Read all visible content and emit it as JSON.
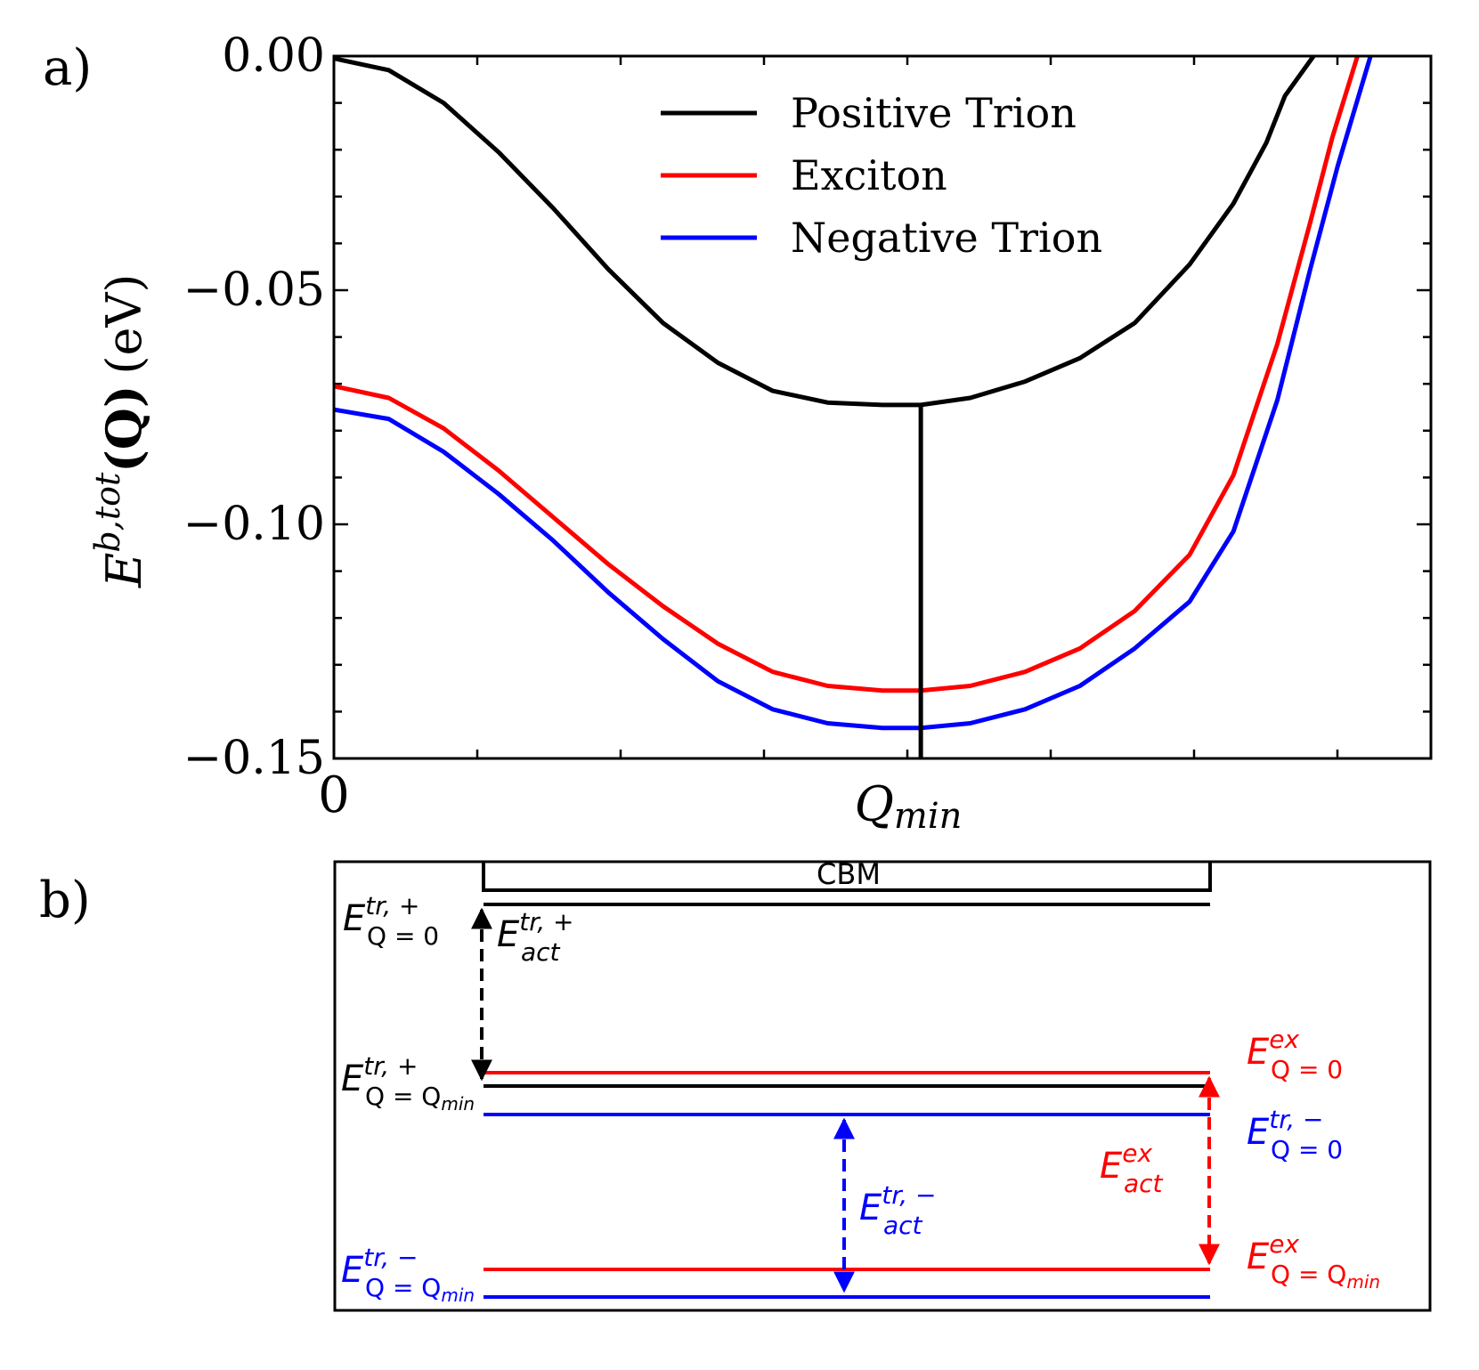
{
  "panel_labels": {
    "a": "a)",
    "b": "b)"
  },
  "chart_data": [
    {
      "type": "line",
      "panel": "a",
      "xlabel": "",
      "ylabel_main": "E",
      "ylabel_sup": "b,tot",
      "ylabel_arg": "(Q)",
      "ylabel_unit": "(eV)",
      "xlim": [
        0,
        1
      ],
      "ylim": [
        -0.15,
        0.0
      ],
      "x_tick_labels": [
        {
          "x": 0,
          "label": "0"
        },
        {
          "x": 0.527,
          "label_main": "Q",
          "label_sub": "min"
        }
      ],
      "y_ticks": [
        {
          "y": 0.0,
          "label": "0.00"
        },
        {
          "y": -0.05,
          "label": "−0.05"
        },
        {
          "y": -0.1,
          "label": "−0.10"
        },
        {
          "y": -0.15,
          "label": "−0.15"
        }
      ],
      "vline": {
        "x": 0.535,
        "y_from": -0.15,
        "y_to": -0.0745,
        "color": "#000000"
      },
      "legend": {
        "position": "top-center"
      },
      "series": [
        {
          "name": "Positive Trion",
          "color": "#000000",
          "x": [
            0,
            0.05,
            0.1,
            0.15,
            0.2,
            0.25,
            0.3,
            0.35,
            0.4,
            0.45,
            0.5,
            0.535,
            0.58,
            0.63,
            0.68,
            0.73,
            0.78,
            0.82,
            0.85,
            0.867,
            0.893
          ],
          "y": [
            -0.0005,
            -0.003,
            -0.01,
            -0.0205,
            -0.0325,
            -0.0455,
            -0.057,
            -0.0655,
            -0.0715,
            -0.074,
            -0.0745,
            -0.0745,
            -0.073,
            -0.0695,
            -0.0645,
            -0.057,
            -0.0445,
            -0.0315,
            -0.0185,
            -0.0085,
            0.0
          ]
        },
        {
          "name": "Exciton",
          "color": "#ff0000",
          "x": [
            0,
            0.05,
            0.1,
            0.15,
            0.2,
            0.25,
            0.3,
            0.35,
            0.4,
            0.45,
            0.5,
            0.535,
            0.58,
            0.63,
            0.68,
            0.73,
            0.78,
            0.82,
            0.86,
            0.89,
            0.91,
            0.933
          ],
          "y": [
            -0.0705,
            -0.073,
            -0.0795,
            -0.0885,
            -0.0985,
            -0.1085,
            -0.1175,
            -0.1255,
            -0.1315,
            -0.1345,
            -0.1355,
            -0.1355,
            -0.1345,
            -0.1315,
            -0.1265,
            -0.1185,
            -0.1065,
            -0.0895,
            -0.0615,
            -0.0355,
            -0.0175,
            0.0
          ]
        },
        {
          "name": "Negative Trion",
          "color": "#0000ff",
          "x": [
            0,
            0.05,
            0.1,
            0.15,
            0.2,
            0.25,
            0.3,
            0.35,
            0.4,
            0.45,
            0.5,
            0.535,
            0.58,
            0.63,
            0.68,
            0.73,
            0.78,
            0.82,
            0.86,
            0.89,
            0.915,
            0.945
          ],
          "y": [
            -0.0755,
            -0.0775,
            -0.0845,
            -0.0935,
            -0.1035,
            -0.1145,
            -0.1245,
            -0.1335,
            -0.1395,
            -0.1425,
            -0.1435,
            -0.1435,
            -0.1425,
            -0.1395,
            -0.1345,
            -0.1265,
            -0.1165,
            -0.1015,
            -0.0735,
            -0.0455,
            -0.0235,
            0.0
          ]
        }
      ]
    },
    {
      "type": "diagram",
      "panel": "b",
      "title": "CBM",
      "labels": {
        "tr_pos_q0": {
          "main": "E",
          "sup": "tr, +",
          "sub": "Q = 0",
          "color": "#000000"
        },
        "tr_pos_qmin": {
          "main": "E",
          "sup": "tr, +",
          "sub": "Q = Q",
          "subsub": "min",
          "color": "#000000"
        },
        "tr_neg_qmin": {
          "main": "E",
          "sup": "tr, −",
          "sub": "Q = Q",
          "subsub": "min",
          "color": "#0000ff"
        },
        "act_pos": {
          "main": "E",
          "sup": "tr, +",
          "sub": "act",
          "color": "#000000"
        },
        "act_neg": {
          "main": "E",
          "sup": "tr, −",
          "sub": "act",
          "color": "#0000ff"
        },
        "ex_q0": {
          "main": "E",
          "sup": "ex",
          "sub": "Q = 0",
          "color": "#ff0000"
        },
        "tr_neg_q0": {
          "main": "E",
          "sup": "tr, −",
          "sub": "Q = 0",
          "color": "#0000ff"
        },
        "ex_act": {
          "main": "E",
          "sup": "ex",
          "sub": "act",
          "color": "#ff0000"
        },
        "ex_qmin": {
          "main": "E",
          "sup": "ex",
          "sub": "Q = Q",
          "subsub": "min",
          "color": "#ff0000"
        }
      }
    }
  ]
}
